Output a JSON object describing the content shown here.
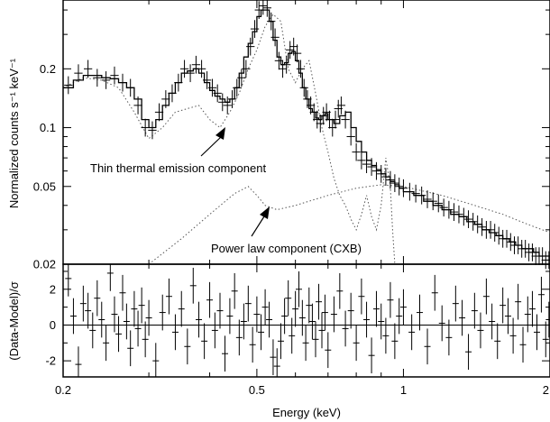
{
  "chart_data": [
    {
      "panel": "spectrum",
      "type": "line",
      "xlabel": "Energy (keV)",
      "ylabel": "Normalized counts s⁻¹ keV⁻¹",
      "xscale": "log",
      "yscale": "log",
      "xlim": [
        0.2,
        2
      ],
      "ylim": [
        0.02,
        0.45
      ],
      "xticks": [
        "0.2",
        "0.5",
        "1",
        "2"
      ],
      "yticks": [
        "0.02",
        "0.05",
        "0.1",
        "0.2"
      ],
      "grid": false,
      "annotations": [
        {
          "text": "Thin thermal emission component",
          "arrow_to": [
            0.47,
            0.098
          ]
        },
        {
          "text": "Power law component (CXB)",
          "arrow_to": [
            0.48,
            0.043
          ]
        }
      ],
      "series": [
        {
          "style": "data-with-error-bars",
          "x": [
            0.205,
            0.215,
            0.225,
            0.235,
            0.245,
            0.255,
            0.265,
            0.275,
            0.285,
            0.295,
            0.305,
            0.315,
            0.325,
            0.335,
            0.345,
            0.355,
            0.365,
            0.375,
            0.385,
            0.395,
            0.405,
            0.415,
            0.425,
            0.435,
            0.445,
            0.455,
            0.465,
            0.475,
            0.485,
            0.495,
            0.505,
            0.515,
            0.525,
            0.535,
            0.545,
            0.555,
            0.565,
            0.575,
            0.585,
            0.595,
            0.605,
            0.615,
            0.625,
            0.635,
            0.645,
            0.655,
            0.665,
            0.675,
            0.685,
            0.695,
            0.705,
            0.715,
            0.725,
            0.735,
            0.745,
            0.76,
            0.78,
            0.8,
            0.82,
            0.84,
            0.86,
            0.88,
            0.9,
            0.92,
            0.94,
            0.96,
            0.98,
            1.0,
            1.03,
            1.06,
            1.09,
            1.12,
            1.15,
            1.18,
            1.21,
            1.24,
            1.27,
            1.3,
            1.33,
            1.36,
            1.39,
            1.42,
            1.45,
            1.48,
            1.51,
            1.54,
            1.57,
            1.6,
            1.63,
            1.66,
            1.69,
            1.72,
            1.75,
            1.78,
            1.81,
            1.84,
            1.87,
            1.9,
            1.93,
            1.96,
            1.99
          ],
          "y": [
            0.165,
            0.19,
            0.2,
            0.18,
            0.175,
            0.185,
            0.17,
            0.16,
            0.13,
            0.1,
            0.097,
            0.12,
            0.14,
            0.15,
            0.17,
            0.2,
            0.19,
            0.21,
            0.2,
            0.175,
            0.16,
            0.15,
            0.135,
            0.13,
            0.14,
            0.16,
            0.18,
            0.2,
            0.26,
            0.32,
            0.4,
            0.42,
            0.41,
            0.35,
            0.29,
            0.22,
            0.2,
            0.21,
            0.25,
            0.26,
            0.24,
            0.2,
            0.16,
            0.14,
            0.13,
            0.12,
            0.11,
            0.105,
            0.115,
            0.12,
            0.11,
            0.1,
            0.11,
            0.125,
            0.13,
            0.11,
            0.09,
            0.075,
            0.068,
            0.065,
            0.063,
            0.06,
            0.058,
            0.056,
            0.054,
            0.052,
            0.05,
            0.049,
            0.047,
            0.046,
            0.045,
            0.043,
            0.042,
            0.041,
            0.039,
            0.038,
            0.037,
            0.036,
            0.035,
            0.034,
            0.033,
            0.032,
            0.031,
            0.03,
            0.03,
            0.029,
            0.028,
            0.027,
            0.027,
            0.026,
            0.025,
            0.025,
            0.024,
            0.024,
            0.023,
            0.023,
            0.022,
            0.022,
            0.022,
            0.021,
            0.021
          ]
        },
        {
          "style": "total-model-step",
          "x": [
            0.2,
            0.21,
            0.22,
            0.23,
            0.24,
            0.25,
            0.26,
            0.27,
            0.28,
            0.29,
            0.3,
            0.31,
            0.32,
            0.33,
            0.34,
            0.35,
            0.36,
            0.37,
            0.38,
            0.39,
            0.4,
            0.41,
            0.42,
            0.43,
            0.44,
            0.45,
            0.46,
            0.47,
            0.48,
            0.49,
            0.5,
            0.51,
            0.52,
            0.53,
            0.54,
            0.55,
            0.56,
            0.57,
            0.58,
            0.59,
            0.6,
            0.61,
            0.62,
            0.63,
            0.64,
            0.65,
            0.66,
            0.67,
            0.68,
            0.69,
            0.7,
            0.72,
            0.74,
            0.76,
            0.78,
            0.8,
            0.82,
            0.84,
            0.86,
            0.88,
            0.9,
            0.92,
            0.94,
            0.96,
            0.98,
            1.0,
            1.05,
            1.1,
            1.15,
            1.2,
            1.25,
            1.3,
            1.35,
            1.4,
            1.45,
            1.5,
            1.55,
            1.6,
            1.65,
            1.7,
            1.75,
            1.8,
            1.85,
            1.9,
            1.95,
            2.0
          ],
          "y": [
            0.16,
            0.175,
            0.185,
            0.185,
            0.18,
            0.178,
            0.17,
            0.16,
            0.14,
            0.11,
            0.1,
            0.11,
            0.13,
            0.15,
            0.17,
            0.19,
            0.195,
            0.2,
            0.19,
            0.17,
            0.155,
            0.145,
            0.14,
            0.135,
            0.14,
            0.16,
            0.19,
            0.23,
            0.27,
            0.31,
            0.37,
            0.4,
            0.4,
            0.35,
            0.28,
            0.23,
            0.21,
            0.215,
            0.24,
            0.245,
            0.22,
            0.19,
            0.16,
            0.14,
            0.125,
            0.12,
            0.112,
            0.11,
            0.115,
            0.118,
            0.11,
            0.105,
            0.115,
            0.12,
            0.1,
            0.085,
            0.075,
            0.068,
            0.064,
            0.061,
            0.058,
            0.056,
            0.053,
            0.051,
            0.049,
            0.047,
            0.045,
            0.042,
            0.04,
            0.038,
            0.036,
            0.035,
            0.033,
            0.032,
            0.03,
            0.029,
            0.028,
            0.027,
            0.026,
            0.025,
            0.024,
            0.024,
            0.023,
            0.022,
            0.022,
            0.021
          ]
        },
        {
          "name": "Thin thermal emission component",
          "style": "dotted",
          "x": [
            0.2,
            0.22,
            0.24,
            0.26,
            0.28,
            0.3,
            0.32,
            0.34,
            0.36,
            0.38,
            0.4,
            0.42,
            0.44,
            0.46,
            0.48,
            0.5,
            0.52,
            0.54,
            0.56,
            0.58,
            0.6,
            0.62,
            0.64,
            0.66,
            0.68,
            0.7,
            0.72,
            0.74,
            0.76,
            0.78,
            0.8,
            0.82,
            0.84,
            0.86,
            0.88,
            0.9,
            0.92,
            0.94,
            0.95,
            0.96
          ],
          "y": [
            0.16,
            0.18,
            0.175,
            0.16,
            0.12,
            0.088,
            0.1,
            0.12,
            0.125,
            0.13,
            0.11,
            0.1,
            0.12,
            0.15,
            0.2,
            0.25,
            0.33,
            0.38,
            0.35,
            0.2,
            0.17,
            0.2,
            0.22,
            0.15,
            0.1,
            0.075,
            0.055,
            0.045,
            0.04,
            0.034,
            0.03,
            0.036,
            0.045,
            0.035,
            0.03,
            0.04,
            0.07,
            0.05,
            0.03,
            0.02
          ]
        },
        {
          "name": "Power law component (CXB)",
          "style": "dotted",
          "x": [
            0.3,
            0.35,
            0.4,
            0.45,
            0.48,
            0.5,
            0.52,
            0.55,
            0.6,
            0.7,
            0.8,
            0.9,
            1.0,
            1.2,
            1.4,
            1.6,
            1.8,
            2.0
          ],
          "y": [
            0.02,
            0.027,
            0.036,
            0.046,
            0.05,
            0.045,
            0.04,
            0.038,
            0.04,
            0.045,
            0.049,
            0.051,
            0.05,
            0.045,
            0.04,
            0.036,
            0.032,
            0.029
          ]
        }
      ]
    },
    {
      "panel": "residuals",
      "type": "scatter",
      "xlabel": "Energy (keV)",
      "ylabel": "(Data-Model)/σ",
      "xscale": "log",
      "xlim": [
        0.2,
        2
      ],
      "ylim": [
        -2.9,
        3.4
      ],
      "yticks": [
        "-2",
        "0",
        "2"
      ],
      "reference_line": 0,
      "error_bar": 1,
      "x": [
        0.205,
        0.21,
        0.215,
        0.22,
        0.225,
        0.23,
        0.235,
        0.24,
        0.245,
        0.25,
        0.255,
        0.26,
        0.265,
        0.27,
        0.275,
        0.28,
        0.285,
        0.29,
        0.295,
        0.3,
        0.31,
        0.32,
        0.33,
        0.34,
        0.35,
        0.36,
        0.37,
        0.38,
        0.39,
        0.4,
        0.41,
        0.42,
        0.43,
        0.44,
        0.45,
        0.46,
        0.47,
        0.48,
        0.49,
        0.5,
        0.51,
        0.52,
        0.53,
        0.54,
        0.55,
        0.56,
        0.57,
        0.58,
        0.59,
        0.6,
        0.61,
        0.62,
        0.63,
        0.64,
        0.65,
        0.66,
        0.67,
        0.68,
        0.69,
        0.7,
        0.72,
        0.74,
        0.76,
        0.78,
        0.8,
        0.82,
        0.84,
        0.86,
        0.88,
        0.9,
        0.92,
        0.94,
        0.96,
        0.98,
        1.0,
        1.04,
        1.08,
        1.12,
        1.16,
        1.2,
        1.24,
        1.28,
        1.32,
        1.36,
        1.4,
        1.44,
        1.48,
        1.52,
        1.56,
        1.6,
        1.64,
        1.68,
        1.72,
        1.76,
        1.8,
        1.84,
        1.88,
        1.92,
        1.96,
        1.99
      ],
      "y": [
        2.6,
        0.5,
        -2.2,
        1.2,
        0.8,
        -0.3,
        1.5,
        0.3,
        -1.0,
        2.9,
        0.6,
        -0.5,
        1.8,
        0.2,
        -1.3,
        0.9,
        -0.2,
        1.1,
        -0.8,
        0.4,
        -2.0,
        0.7,
        1.6,
        -0.4,
        0.9,
        -1.2,
        2.2,
        0.3,
        -0.9,
        1.4,
        -0.3,
        0.8,
        -1.6,
        0.5,
        1.9,
        -0.7,
        0.2,
        1.2,
        -1.1,
        0.6,
        -0.4,
        1.0,
        0.3,
        -1.8,
        -2.3,
        -0.9,
        0.5,
        1.5,
        -0.6,
        0.9,
        2.0,
        0.4,
        -1.0,
        1.1,
        0.2,
        -0.8,
        1.3,
        -0.3,
        0.7,
        -1.4,
        0.6,
        1.9,
        -0.2,
        0.8,
        -1.0,
        1.6,
        0.3,
        -1.7,
        0.9,
        0.2,
        -0.6,
        1.4,
        -0.9,
        0.5,
        1.0,
        -0.4,
        0.7,
        -1.2,
        1.8,
        0.1,
        -0.7,
        1.2,
        0.4,
        -1.5,
        0.8,
        -0.3,
        1.6,
        0.2,
        -0.9,
        1.1,
        0.5,
        -0.6,
        1.3,
        -1.1,
        0.6,
        0.9,
        -0.4,
        1.7,
        -0.8,
        0.3
      ]
    }
  ]
}
